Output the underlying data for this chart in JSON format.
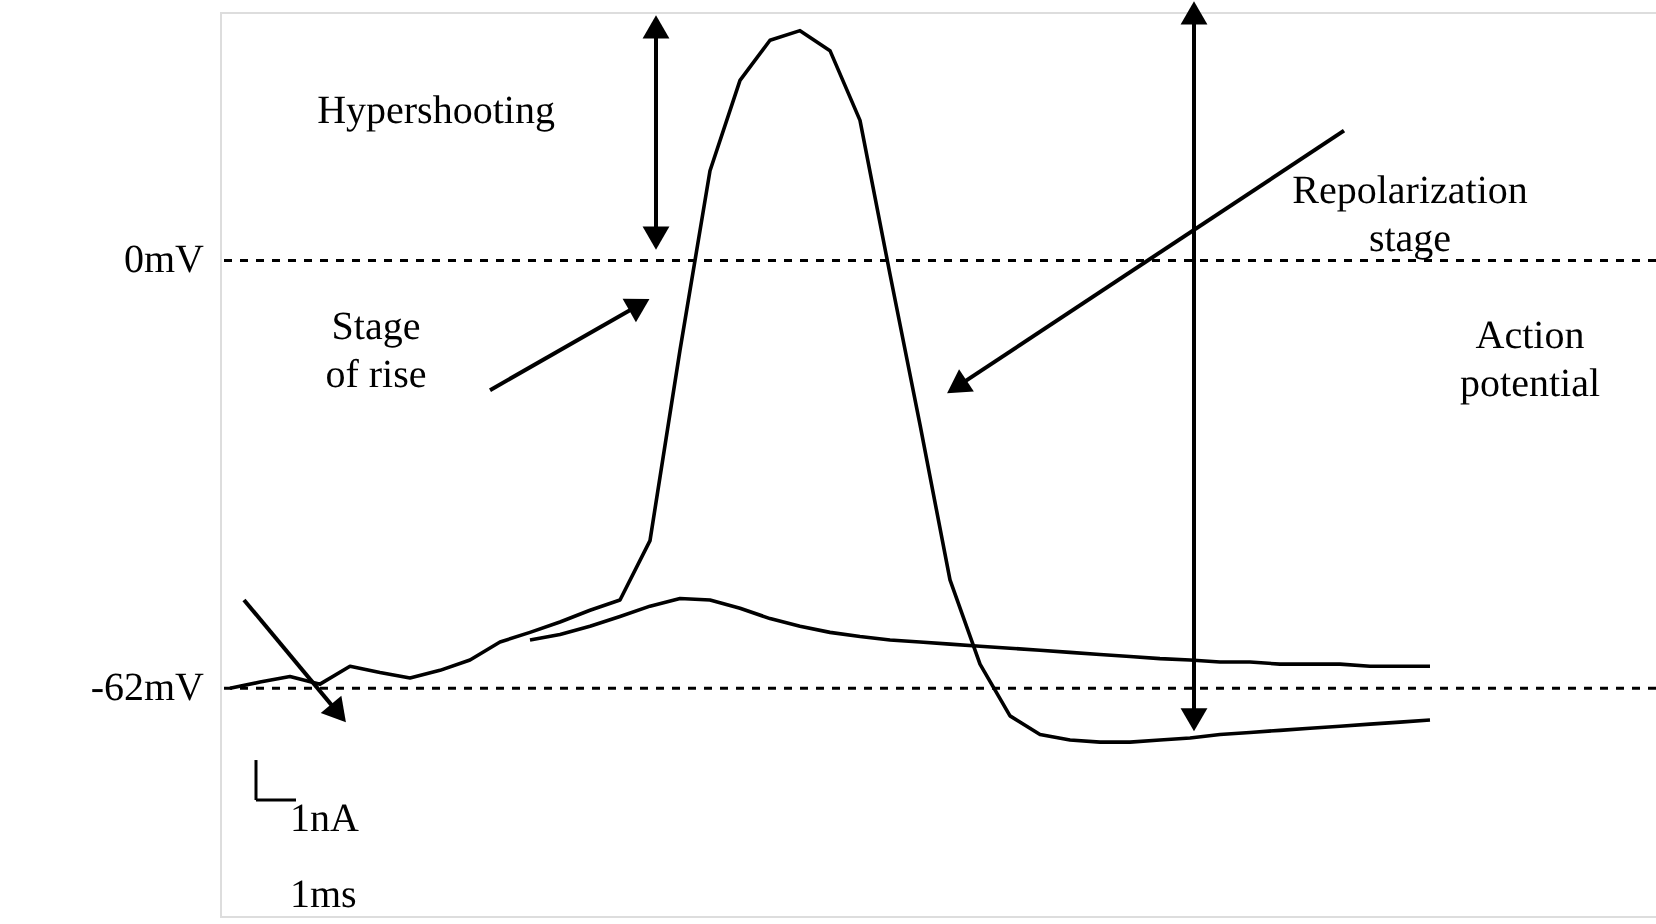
{
  "chart_data": {
    "type": "line",
    "categories": [
      null,
      null,
      null,
      null,
      null,
      null,
      null,
      null,
      null,
      null,
      null,
      null,
      null,
      null,
      null,
      null,
      null,
      null,
      null,
      null,
      null,
      null,
      null,
      null,
      null,
      null,
      null,
      null,
      null,
      null,
      null,
      null,
      null,
      null,
      null,
      null,
      null,
      null,
      null,
      null,
      null
    ],
    "ylim": [
      -95,
      36
    ],
    "yticks": [
      {
        "value": 0,
        "label": "0mV"
      },
      {
        "value": -62,
        "label": "-62mV"
      }
    ],
    "tick_labels": "y",
    "marker": "none",
    "line_style": "solid",
    "series": [
      {
        "color": "#000000",
        "values": [
          -62,
          -61.1,
          -60.3,
          -61.4,
          -58.8,
          -59.7,
          -60.5,
          -59.4,
          -57.9,
          -55.3,
          -53.9,
          -52.4,
          -50.7,
          -49.2,
          -40.6,
          -13,
          13,
          26.1,
          31.9,
          33.3,
          30.4,
          20.3,
          -2,
          -23.8,
          -46.3,
          -58.5,
          -66,
          -68.7,
          -69.5,
          -69.8,
          -69.8,
          -69.5,
          -69.2,
          -68.7,
          -68.4,
          -68.1,
          -67.8,
          -67.5,
          -67.2,
          -66.9,
          -66.6
        ]
      },
      {
        "color": "#000000",
        "values": [
          null,
          null,
          null,
          null,
          null,
          null,
          null,
          null,
          null,
          null,
          -55,
          -54.2,
          -53,
          -51.6,
          -50.1,
          -49,
          -49.2,
          -50.4,
          -51.9,
          -53,
          -53.9,
          -54.5,
          -55,
          -55.3,
          -55.6,
          -55.9,
          -56.2,
          -56.5,
          -56.8,
          -57.1,
          -57.4,
          -57.7,
          -57.9,
          -58.2,
          -58.2,
          -58.5,
          -58.5,
          -58.5,
          -58.8,
          -58.8,
          -58.8
        ]
      }
    ],
    "ref_lines": [
      {
        "axis": "y",
        "value": 0,
        "color": "#000000",
        "line_style": "dashed"
      },
      {
        "axis": "y",
        "value": -62,
        "color": "#000000",
        "line_style": "dashed"
      }
    ],
    "annotations": [
      "Hypershooting",
      "Stage\nof rise",
      "Repolarization\nstage",
      "Action\npotential",
      "1nA",
      "1ms"
    ]
  }
}
